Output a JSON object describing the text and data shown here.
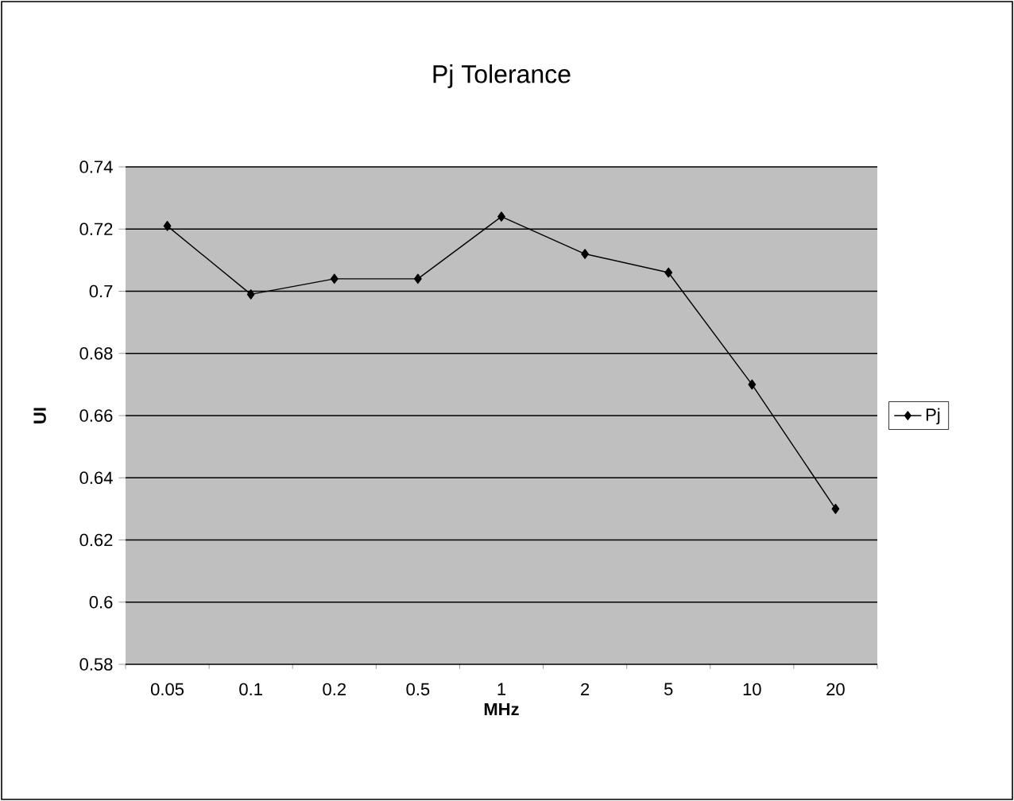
{
  "chart_data": {
    "type": "line",
    "title": "Pj Tolerance",
    "xlabel": "MHz",
    "ylabel": "UI",
    "categories": [
      "0.05",
      "0.1",
      "0.2",
      "0.5",
      "1",
      "2",
      "5",
      "10",
      "20"
    ],
    "series": [
      {
        "name": "Pj",
        "color": "#000000",
        "values": [
          0.721,
          0.699,
          0.704,
          0.704,
          0.724,
          0.712,
          0.706,
          0.67,
          0.63
        ]
      }
    ],
    "ylim": [
      0.58,
      0.74
    ],
    "yticks": [
      0.58,
      0.6,
      0.62,
      0.64,
      0.66,
      0.68,
      0.7,
      0.72,
      0.74
    ],
    "grid": "y",
    "legend": "right",
    "marker": "diamond",
    "line_style": "solid"
  }
}
